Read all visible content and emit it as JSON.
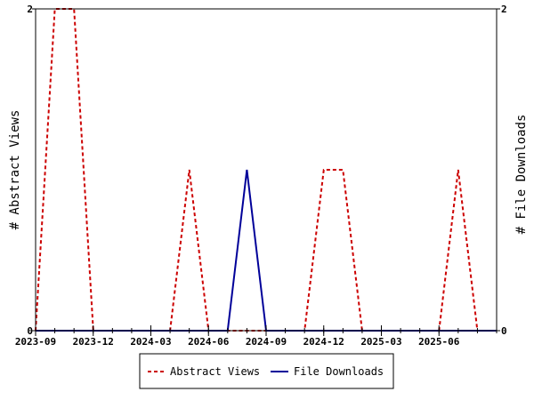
{
  "chart_data": {
    "type": "line",
    "title": "",
    "xlabel": "",
    "ylabel_left": "# Abstract Views",
    "ylabel_right": "# File Downloads",
    "x_tick_labels": [
      "2023-09",
      "2023-12",
      "2024-03",
      "2024-06",
      "2024-09",
      "2024-12",
      "2025-03",
      "2025-06"
    ],
    "x": [
      "2023-09",
      "2023-10",
      "2023-11",
      "2023-12",
      "2024-01",
      "2024-02",
      "2024-03",
      "2024-04",
      "2024-05",
      "2024-06",
      "2024-07",
      "2024-08",
      "2024-09",
      "2024-10",
      "2024-11",
      "2024-12",
      "2025-01",
      "2025-02",
      "2025-03",
      "2025-04",
      "2025-05",
      "2025-06",
      "2025-07",
      "2025-08",
      "2025-09"
    ],
    "ylim_left": [
      0,
      2
    ],
    "ylim_right": [
      0,
      2
    ],
    "left_ticks": [
      "0",
      "2"
    ],
    "right_ticks": [
      "0",
      "2"
    ],
    "series": [
      {
        "name": "Abstract Views",
        "axis": "left",
        "color": "#cc0000",
        "style": "dashed",
        "values": [
          0,
          2,
          2,
          0,
          0,
          0,
          0,
          0,
          1,
          0,
          0,
          0,
          0,
          0,
          0,
          1,
          1,
          0,
          0,
          0,
          0,
          0,
          1,
          0,
          0
        ]
      },
      {
        "name": "File Downloads",
        "axis": "right",
        "color": "#000099",
        "style": "solid",
        "values": [
          0,
          0,
          0,
          0,
          0,
          0,
          0,
          0,
          0,
          0,
          0,
          1,
          0,
          0,
          0,
          0,
          0,
          0,
          0,
          0,
          0,
          0,
          0,
          0,
          0
        ]
      }
    ],
    "legend_position": "bottom",
    "grid": false
  }
}
